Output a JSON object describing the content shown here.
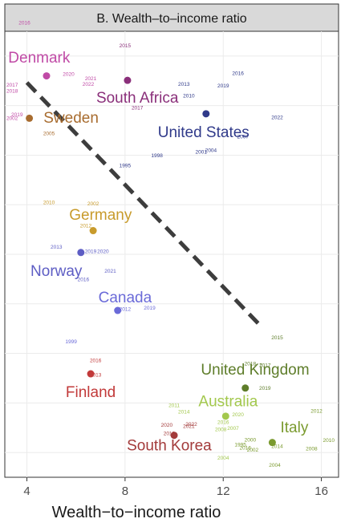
{
  "chart_data": {
    "type": "scatter",
    "title": "B. Wealth–to–income ratio",
    "xlabel": "Wealth−to−income ratio",
    "xlim": [
      3.1,
      16.7
    ],
    "ylim": [
      0,
      1
    ],
    "xticks": [
      4,
      8,
      12,
      16
    ],
    "yticks_count": 9,
    "grid": true,
    "fit_line": {
      "x": [
        4.0,
        13.6
      ],
      "y": [
        0.885,
        0.335
      ],
      "style": "dashed",
      "color": "#3d3d3d"
    },
    "countries": [
      {
        "name": "Denmark",
        "color": "#c04aa6",
        "point": [
          4.8,
          0.9
        ],
        "label_pos": [
          4.5,
          0.93
        ],
        "years": [
          {
            "t": "2015",
            "x": 3.9,
            "y": 1.075
          },
          {
            "t": "2016",
            "x": 3.9,
            "y": 1.015
          },
          {
            "t": "2017",
            "x": 3.4,
            "y": 0.876
          },
          {
            "t": "2018",
            "x": 3.4,
            "y": 0.862
          },
          {
            "t": "2020",
            "x": 5.7,
            "y": 0.9
          },
          {
            "t": "2021",
            "x": 6.6,
            "y": 0.89
          },
          {
            "t": "2022",
            "x": 6.5,
            "y": 0.878
          },
          {
            "t": "2002",
            "x": 3.4,
            "y": 0.801
          },
          {
            "t": "2019",
            "x": 3.6,
            "y": 0.809
          }
        ]
      },
      {
        "name": "South Africa",
        "color": "#8a2f7a",
        "point": [
          8.1,
          0.89
        ],
        "label_pos": [
          8.5,
          0.84
        ],
        "years": [
          {
            "t": "2015",
            "x": 8.0,
            "y": 0.964
          },
          {
            "t": "2017",
            "x": 8.5,
            "y": 0.825
          }
        ]
      },
      {
        "name": "Sweden",
        "color": "#a86c2f",
        "point": [
          4.1,
          0.805
        ],
        "label_pos": [
          5.8,
          0.795
        ],
        "years": [
          {
            "t": "2005",
            "x": 4.9,
            "y": 0.767
          }
        ]
      },
      {
        "name": "United States",
        "color": "#303a8a",
        "point": [
          11.3,
          0.815
        ],
        "label_pos": [
          11.2,
          0.763
        ],
        "years": [
          {
            "t": "2013",
            "x": 10.4,
            "y": 0.878
          },
          {
            "t": "2010",
            "x": 10.6,
            "y": 0.852
          },
          {
            "t": "2016",
            "x": 12.6,
            "y": 0.902
          },
          {
            "t": "2019",
            "x": 12.0,
            "y": 0.874
          },
          {
            "t": "2022",
            "x": 14.2,
            "y": 0.803
          },
          {
            "t": "1998",
            "x": 9.3,
            "y": 0.718
          },
          {
            "t": "1995",
            "x": 8.0,
            "y": 0.695
          },
          {
            "t": "2001",
            "x": 11.1,
            "y": 0.726
          },
          {
            "t": "2004",
            "x": 11.5,
            "y": 0.729
          },
          {
            "t": "2007",
            "x": 12.8,
            "y": 0.76
          }
        ]
      },
      {
        "name": "Germany",
        "color": "#c89b2c",
        "point": [
          6.7,
          0.553
        ],
        "label_pos": [
          7.0,
          0.577
        ],
        "years": [
          {
            "t": "2010",
            "x": 4.9,
            "y": 0.612
          },
          {
            "t": "2002",
            "x": 6.7,
            "y": 0.61
          },
          {
            "t": "2012",
            "x": 6.4,
            "y": 0.56
          }
        ]
      },
      {
        "name": "Norway",
        "color": "#5d5dc4",
        "point": [
          6.2,
          0.504
        ],
        "label_pos": [
          5.2,
          0.451
        ],
        "years": [
          {
            "t": "2013",
            "x": 5.2,
            "y": 0.513
          },
          {
            "t": "2019",
            "x": 6.6,
            "y": 0.503
          },
          {
            "t": "2020",
            "x": 7.1,
            "y": 0.503
          },
          {
            "t": "2021",
            "x": 7.4,
            "y": 0.459
          },
          {
            "t": "2016",
            "x": 6.3,
            "y": 0.44
          }
        ]
      },
      {
        "name": "Canada",
        "color": "#6a6ad8",
        "point": [
          7.7,
          0.374
        ],
        "label_pos": [
          8.0,
          0.392
        ],
        "years": [
          {
            "t": "2012",
            "x": 8.0,
            "y": 0.373
          },
          {
            "t": "2019",
            "x": 9.0,
            "y": 0.376
          },
          {
            "t": "1999",
            "x": 5.8,
            "y": 0.3
          }
        ]
      },
      {
        "name": "Finland",
        "color": "#c23a3a",
        "point": [
          6.6,
          0.232
        ],
        "label_pos": [
          6.6,
          0.18
        ],
        "years": [
          {
            "t": "2016",
            "x": 6.8,
            "y": 0.258
          },
          {
            "t": "2013",
            "x": 6.8,
            "y": 0.226
          }
        ]
      },
      {
        "name": "United Kingdom",
        "color": "#5e7d2a",
        "point": [
          12.9,
          0.2
        ],
        "label_pos": [
          13.3,
          0.23
        ],
        "years": [
          {
            "t": "2015",
            "x": 14.2,
            "y": 0.309
          },
          {
            "t": "2018",
            "x": 13.1,
            "y": 0.251
          },
          {
            "t": "2017",
            "x": 13.7,
            "y": 0.247
          },
          {
            "t": "2019",
            "x": 13.7,
            "y": 0.196
          }
        ]
      },
      {
        "name": "Australia",
        "color": "#a3c84d",
        "point": [
          12.1,
          0.137
        ],
        "label_pos": [
          12.2,
          0.159
        ],
        "years": [
          {
            "t": "2011",
            "x": 10.0,
            "y": 0.157
          },
          {
            "t": "2014",
            "x": 10.4,
            "y": 0.143
          },
          {
            "t": "2020",
            "x": 12.6,
            "y": 0.137
          },
          {
            "t": "2016",
            "x": 12.0,
            "y": 0.12
          },
          {
            "t": "2008",
            "x": 11.9,
            "y": 0.103
          },
          {
            "t": "2007",
            "x": 12.4,
            "y": 0.106
          },
          {
            "t": "2004",
            "x": 12.0,
            "y": 0.04
          }
        ]
      },
      {
        "name": "Italy",
        "color": "#7a9a2e",
        "point": [
          14.0,
          0.078
        ],
        "label_pos": [
          14.9,
          0.101
        ],
        "years": [
          {
            "t": "2012",
            "x": 15.8,
            "y": 0.145
          },
          {
            "t": "2010",
            "x": 16.3,
            "y": 0.079
          },
          {
            "t": "2014",
            "x": 14.2,
            "y": 0.066
          },
          {
            "t": "2008",
            "x": 15.6,
            "y": 0.06
          },
          {
            "t": "2004",
            "x": 14.1,
            "y": 0.023
          },
          {
            "t": "1995",
            "x": 12.7,
            "y": 0.069
          },
          {
            "t": "2016",
            "x": 12.9,
            "y": 0.062
          },
          {
            "t": "2002",
            "x": 13.2,
            "y": 0.058
          },
          {
            "t": "2000",
            "x": 13.1,
            "y": 0.08
          }
        ]
      },
      {
        "name": "South Korea",
        "color": "#a33b3b",
        "point": [
          10.0,
          0.094
        ],
        "label_pos": [
          9.8,
          0.06
        ],
        "years": [
          {
            "t": "2020",
            "x": 9.7,
            "y": 0.113
          },
          {
            "t": "2021",
            "x": 10.6,
            "y": 0.111
          },
          {
            "t": "2022",
            "x": 10.7,
            "y": 0.115
          },
          {
            "t": "2018",
            "x": 9.8,
            "y": 0.094
          }
        ]
      }
    ]
  }
}
